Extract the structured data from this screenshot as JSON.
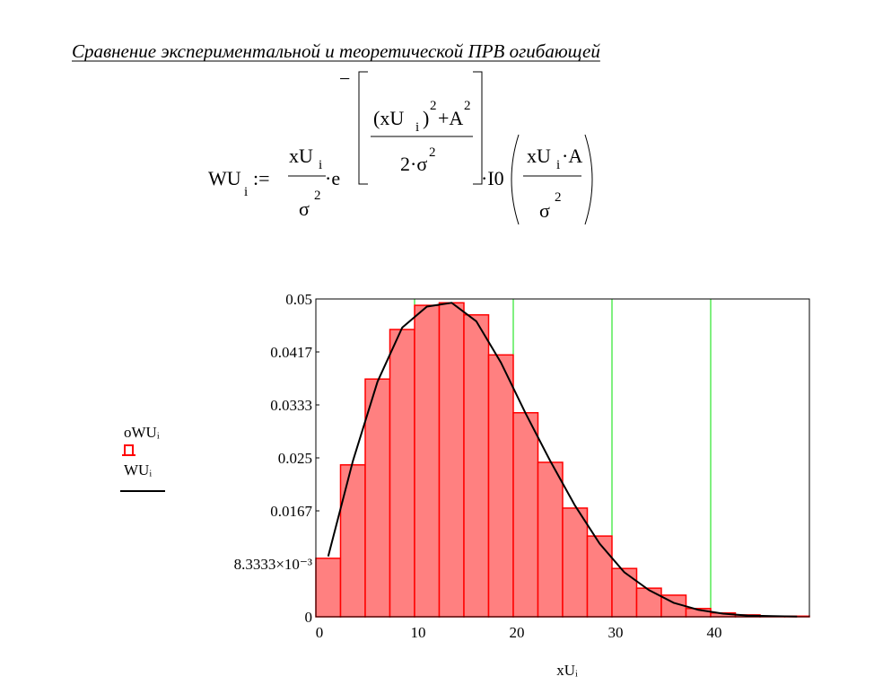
{
  "heading": "Сравнение экспериментальной и теоретической ПРВ огибающей",
  "formula": [
    "WU",
    "i",
    ":=",
    "xU",
    "i",
    "σ",
    "2",
    "·e",
    "−",
    "(xU",
    "i",
    ")",
    "2",
    "+A",
    "2",
    "2·σ",
    "2",
    "·I0",
    "xU",
    "i",
    "·A",
    "σ",
    "2"
  ],
  "chart_data": {
    "type": "histogram",
    "xlabel": "xUᵢ",
    "bins": [
      0,
      2.5,
      5,
      7.5,
      10,
      12.5,
      15,
      17.5,
      20,
      22.5,
      25,
      27.5,
      30,
      32.5,
      35,
      37.5,
      40,
      42.5,
      45,
      47.5,
      50
    ],
    "series": [
      {
        "name": "oWUᵢ",
        "type": "histogram",
        "color": "#ff0000",
        "fill": "#ff8080",
        "values": [
          0.0092,
          0.0239,
          0.0374,
          0.0452,
          0.049,
          0.0494,
          0.0475,
          0.0412,
          0.0321,
          0.0243,
          0.0171,
          0.0127,
          0.0076,
          0.0045,
          0.0034,
          0.0013,
          0.0006,
          0.0003,
          0.0001,
          0.0001
        ]
      },
      {
        "name": "WUᵢ",
        "type": "line",
        "color": "#000000",
        "x": [
          1.25,
          3.75,
          6.25,
          8.75,
          11.25,
          13.75,
          16.25,
          18.75,
          21.25,
          23.75,
          26.25,
          28.75,
          31.25,
          33.75,
          36.25,
          38.75,
          41.25,
          43.75,
          46.25,
          48.75
        ],
        "values": [
          0.0095,
          0.0245,
          0.037,
          0.0455,
          0.0488,
          0.0494,
          0.0465,
          0.04,
          0.032,
          0.0245,
          0.0175,
          0.0115,
          0.007,
          0.0042,
          0.0022,
          0.0011,
          0.0005,
          0.0002,
          0.0001,
          3e-05
        ]
      }
    ],
    "xlim": [
      0,
      50
    ],
    "xticks": [
      0,
      10,
      20,
      30,
      40
    ],
    "ylim": [
      0,
      0.05
    ],
    "yticks": [
      0,
      {
        "value": 0.0083333,
        "label": "8.3333×10⁻³"
      },
      {
        "value": 0.016667,
        "label": "0.0167"
      },
      0.025,
      {
        "value": 0.033333,
        "label": "0.0333"
      },
      {
        "value": 0.041667,
        "label": "0.0417"
      },
      0.05
    ],
    "grid": "x",
    "grid_color": "#00e000"
  }
}
